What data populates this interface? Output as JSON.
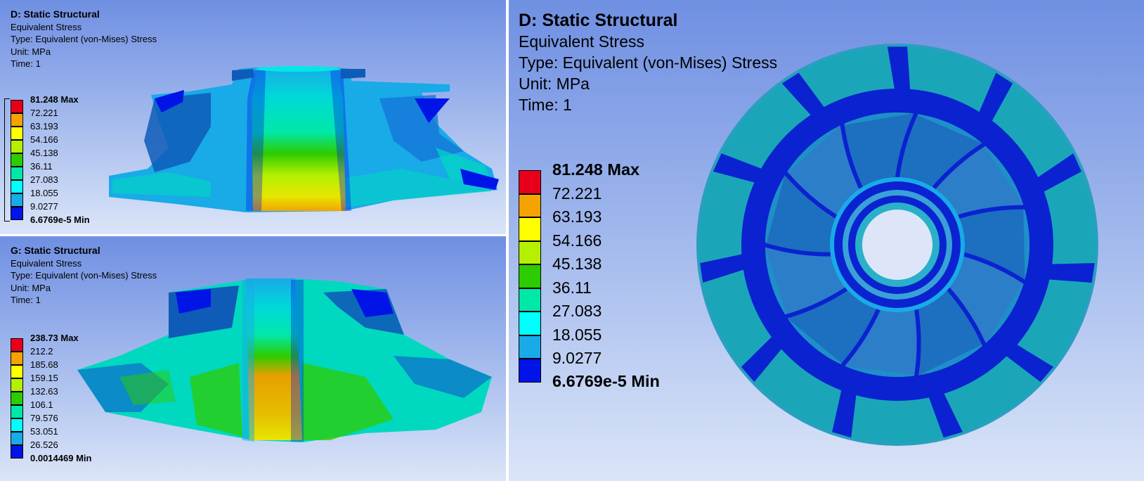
{
  "panels": {
    "d_top": {
      "title": "D: Static Structural",
      "result": "Equivalent Stress",
      "type": "Type: Equivalent (von-Mises) Stress",
      "unit": "Unit: MPa",
      "time": "Time: 1",
      "legend": {
        "max": "81.248 Max",
        "ticks": [
          "72.221",
          "63.193",
          "54.166",
          "45.138",
          "36.11",
          "27.083",
          "18.055",
          "9.0277"
        ],
        "min": "6.6769e-5 Min"
      }
    },
    "g_bottom": {
      "title": "G: Static Structural",
      "result": "Equivalent Stress",
      "type": "Type: Equivalent (von-Mises) Stress",
      "unit": "Unit: MPa",
      "time": "Time: 1",
      "legend": {
        "max": "238.73 Max",
        "ticks": [
          "212.2",
          "185.68",
          "159.15",
          "132.63",
          "106.1",
          "79.576",
          "53.051",
          "26.526"
        ],
        "min": "0.0014469 Min"
      }
    },
    "d_right": {
      "title": "D: Static Structural",
      "result": "Equivalent Stress",
      "type": "Type: Equivalent (von-Mises) Stress",
      "unit": "Unit: MPa",
      "time": "Time: 1",
      "legend": {
        "max": "81.248 Max",
        "ticks": [
          "72.221",
          "63.193",
          "54.166",
          "45.138",
          "36.11",
          "27.083",
          "18.055",
          "9.0277"
        ],
        "min": "6.6769e-5 Min"
      }
    }
  },
  "colors": {
    "legend_scale": [
      "#e8001a",
      "#f5a300",
      "#ffff00",
      "#b4f000",
      "#2ccc00",
      "#00e8a8",
      "#00ffff",
      "#19aae8",
      "#0014e8"
    ],
    "background_top": "#6f8fe2",
    "background_bottom": "#dbe5f8"
  }
}
